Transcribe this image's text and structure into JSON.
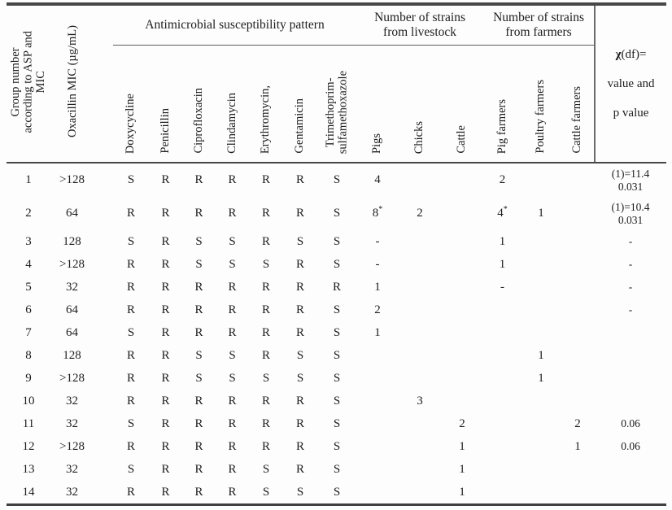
{
  "colors": {
    "rule": "#474747",
    "text": "#1d1d1d",
    "background": "#fdfdfd"
  },
  "table": {
    "header": {
      "col_group": "Group number\naccording to ASP and\nMIC",
      "col_mic": "Oxacillin MIC (µg/mL)",
      "group_pattern": "Antimicrobial susceptibility pattern",
      "group_livestock": "Number of strains\nfrom livestock",
      "group_farmers": "Number of strains\nfrom farmers",
      "pattern_cols": [
        "Doxycycline",
        "Penicillin",
        "Ciprofloxacin",
        "Clindamycin",
        "Erythromycin,",
        "Gentamicin",
        "Trimethoprim-\nsulfamethoxazole"
      ],
      "livestock_cols": [
        "Pigs",
        "Chicks",
        "Cattle"
      ],
      "farmers_cols": [
        "Pig farmers",
        "Poultry farmers",
        "Cattle farmers"
      ],
      "chi_symbol": "χ",
      "chi_rest": "(df)=",
      "chi_line2": "value and",
      "chi_line3": "p value"
    },
    "rows": [
      {
        "group": "1",
        "mic": ">128",
        "pattern": [
          "S",
          "R",
          "R",
          "R",
          "R",
          "R",
          "S"
        ],
        "pigs": "4",
        "chicks": "",
        "cattle": "",
        "pig_farmers": "2",
        "poultry_farmers": "",
        "cattle_farmers": "",
        "chi": "(1)=11.4\n0.031"
      },
      {
        "group": "2",
        "mic": "64",
        "pattern": [
          "R",
          "R",
          "R",
          "R",
          "R",
          "R",
          "S"
        ],
        "pigs": "8*",
        "chicks": "2",
        "cattle": "",
        "pig_farmers": "4*",
        "poultry_farmers": "1",
        "cattle_farmers": "",
        "chi": "(1)=10.4\n0.031"
      },
      {
        "group": "3",
        "mic": "128",
        "pattern": [
          "S",
          "R",
          "S",
          "S",
          "R",
          "S",
          "S"
        ],
        "pigs": "-",
        "chicks": "",
        "cattle": "",
        "pig_farmers": "1",
        "poultry_farmers": "",
        "cattle_farmers": "",
        "chi": "-"
      },
      {
        "group": "4",
        "mic": ">128",
        "pattern": [
          "R",
          "R",
          "S",
          "S",
          "S",
          "R",
          "S"
        ],
        "pigs": "-",
        "chicks": "",
        "cattle": "",
        "pig_farmers": "1",
        "poultry_farmers": "",
        "cattle_farmers": "",
        "chi": "-"
      },
      {
        "group": "5",
        "mic": "32",
        "pattern": [
          "R",
          "R",
          "R",
          "R",
          "R",
          "R",
          "R"
        ],
        "pigs": "1",
        "chicks": "",
        "cattle": "",
        "pig_farmers": "-",
        "poultry_farmers": "",
        "cattle_farmers": "",
        "chi": "-"
      },
      {
        "group": "6",
        "mic": "64",
        "pattern": [
          "R",
          "R",
          "R",
          "R",
          "R",
          "R",
          "S"
        ],
        "pigs": "2",
        "chicks": "",
        "cattle": "",
        "pig_farmers": "",
        "poultry_farmers": "",
        "cattle_farmers": "",
        "chi": "-"
      },
      {
        "group": "7",
        "mic": "64",
        "pattern": [
          "S",
          "R",
          "R",
          "R",
          "R",
          "R",
          "S"
        ],
        "pigs": "1",
        "chicks": "",
        "cattle": "",
        "pig_farmers": "",
        "poultry_farmers": "",
        "cattle_farmers": "",
        "chi": ""
      },
      {
        "group": "8",
        "mic": "128",
        "pattern": [
          "R",
          "R",
          "S",
          "S",
          "R",
          "S",
          "S"
        ],
        "pigs": "",
        "chicks": "",
        "cattle": "",
        "pig_farmers": "",
        "poultry_farmers": "1",
        "cattle_farmers": "",
        "chi": ""
      },
      {
        "group": "9",
        "mic": ">128",
        "pattern": [
          "R",
          "R",
          "S",
          "S",
          "S",
          "S",
          "S"
        ],
        "pigs": "",
        "chicks": "",
        "cattle": "",
        "pig_farmers": "",
        "poultry_farmers": "1",
        "cattle_farmers": "",
        "chi": ""
      },
      {
        "group": "10",
        "mic": "32",
        "pattern": [
          "R",
          "R",
          "R",
          "R",
          "R",
          "R",
          "S"
        ],
        "pigs": "",
        "chicks": "3",
        "cattle": "",
        "pig_farmers": "",
        "poultry_farmers": "",
        "cattle_farmers": "",
        "chi": ""
      },
      {
        "group": "11",
        "mic": "32",
        "pattern": [
          "S",
          "R",
          "R",
          "R",
          "R",
          "R",
          "S"
        ],
        "pigs": "",
        "chicks": "",
        "cattle": "2",
        "pig_farmers": "",
        "poultry_farmers": "",
        "cattle_farmers": "2",
        "chi": "0.06"
      },
      {
        "group": "12",
        "mic": ">128",
        "pattern": [
          "R",
          "R",
          "R",
          "R",
          "R",
          "R",
          "S"
        ],
        "pigs": "",
        "chicks": "",
        "cattle": "1",
        "pig_farmers": "",
        "poultry_farmers": "",
        "cattle_farmers": "1",
        "chi": "0.06"
      },
      {
        "group": "13",
        "mic": "32",
        "pattern": [
          "S",
          "R",
          "R",
          "R",
          "S",
          "R",
          "S"
        ],
        "pigs": "",
        "chicks": "",
        "cattle": "1",
        "pig_farmers": "",
        "poultry_farmers": "",
        "cattle_farmers": "",
        "chi": ""
      },
      {
        "group": "14",
        "mic": "32",
        "pattern": [
          "R",
          "R",
          "R",
          "R",
          "S",
          "S",
          "S"
        ],
        "pigs": "",
        "chicks": "",
        "cattle": "1",
        "pig_farmers": "",
        "poultry_farmers": "",
        "cattle_farmers": "",
        "chi": ""
      }
    ]
  }
}
